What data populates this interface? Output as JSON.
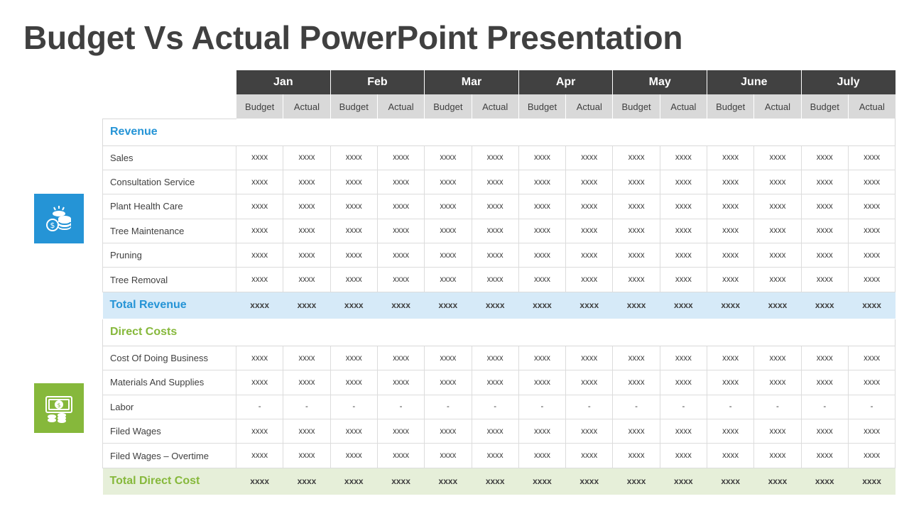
{
  "title": "Budget Vs Actual PowerPoint Presentation",
  "colors": {
    "revenue_accent": "#2594d6",
    "cost_accent": "#86b83b",
    "header_dark": "#414141",
    "subheader_gray": "#d9d9d9"
  },
  "icons": {
    "revenue": "coins-money-icon",
    "costs": "cash-bill-icon"
  },
  "months": [
    "Jan",
    "Feb",
    "Mar",
    "Apr",
    "May",
    "June",
    "July"
  ],
  "sub_labels": {
    "budget": "Budget",
    "actual": "Actual"
  },
  "revenue": {
    "heading": "Revenue",
    "rows": [
      {
        "label": "Sales",
        "values": [
          "xxxx",
          "xxxx",
          "xxxx",
          "xxxx",
          "xxxx",
          "xxxx",
          "xxxx",
          "xxxx",
          "xxxx",
          "xxxx",
          "xxxx",
          "xxxx",
          "xxxx",
          "xxxx"
        ]
      },
      {
        "label": "Consultation Service",
        "values": [
          "xxxx",
          "xxxx",
          "xxxx",
          "xxxx",
          "xxxx",
          "xxxx",
          "xxxx",
          "xxxx",
          "xxxx",
          "xxxx",
          "xxxx",
          "xxxx",
          "xxxx",
          "xxxx"
        ]
      },
      {
        "label": "Plant Health Care",
        "values": [
          "xxxx",
          "xxxx",
          "xxxx",
          "xxxx",
          "xxxx",
          "xxxx",
          "xxxx",
          "xxxx",
          "xxxx",
          "xxxx",
          "xxxx",
          "xxxx",
          "xxxx",
          "xxxx"
        ]
      },
      {
        "label": "Tree Maintenance",
        "values": [
          "xxxx",
          "xxxx",
          "xxxx",
          "xxxx",
          "xxxx",
          "xxxx",
          "xxxx",
          "xxxx",
          "xxxx",
          "xxxx",
          "xxxx",
          "xxxx",
          "xxxx",
          "xxxx"
        ]
      },
      {
        "label": "Pruning",
        "values": [
          "xxxx",
          "xxxx",
          "xxxx",
          "xxxx",
          "xxxx",
          "xxxx",
          "xxxx",
          "xxxx",
          "xxxx",
          "xxxx",
          "xxxx",
          "xxxx",
          "xxxx",
          "xxxx"
        ]
      },
      {
        "label": "Tree Removal",
        "values": [
          "xxxx",
          "xxxx",
          "xxxx",
          "xxxx",
          "xxxx",
          "xxxx",
          "xxxx",
          "xxxx",
          "xxxx",
          "xxxx",
          "xxxx",
          "xxxx",
          "xxxx",
          "xxxx"
        ]
      }
    ],
    "total": {
      "label": "Total Revenue",
      "values": [
        "xxxx",
        "xxxx",
        "xxxx",
        "xxxx",
        "xxxx",
        "xxxx",
        "xxxx",
        "xxxx",
        "xxxx",
        "xxxx",
        "xxxx",
        "xxxx",
        "xxxx",
        "xxxx"
      ]
    }
  },
  "direct_costs": {
    "heading": "Direct Costs",
    "rows": [
      {
        "label": "Cost Of Doing Business",
        "values": [
          "xxxx",
          "xxxx",
          "xxxx",
          "xxxx",
          "xxxx",
          "xxxx",
          "xxxx",
          "xxxx",
          "xxxx",
          "xxxx",
          "xxxx",
          "xxxx",
          "xxxx",
          "xxxx"
        ]
      },
      {
        "label": "Materials And Supplies",
        "values": [
          "xxxx",
          "xxxx",
          "xxxx",
          "xxxx",
          "xxxx",
          "xxxx",
          "xxxx",
          "xxxx",
          "xxxx",
          "xxxx",
          "xxxx",
          "xxxx",
          "xxxx",
          "xxxx"
        ]
      },
      {
        "label": "Labor",
        "values": [
          "-",
          "-",
          "-",
          "-",
          "-",
          "-",
          "-",
          "-",
          "-",
          "-",
          "-",
          "-",
          "-",
          "-"
        ]
      },
      {
        "label": "Filed Wages",
        "values": [
          "xxxx",
          "xxxx",
          "xxxx",
          "xxxx",
          "xxxx",
          "xxxx",
          "xxxx",
          "xxxx",
          "xxxx",
          "xxxx",
          "xxxx",
          "xxxx",
          "xxxx",
          "xxxx"
        ]
      },
      {
        "label": "Filed Wages – Overtime",
        "values": [
          "xxxx",
          "xxxx",
          "xxxx",
          "xxxx",
          "xxxx",
          "xxxx",
          "xxxx",
          "xxxx",
          "xxxx",
          "xxxx",
          "xxxx",
          "xxxx",
          "xxxx",
          "xxxx"
        ]
      }
    ],
    "total": {
      "label": "Total Direct Cost",
      "values": [
        "xxxx",
        "xxxx",
        "xxxx",
        "xxxx",
        "xxxx",
        "xxxx",
        "xxxx",
        "xxxx",
        "xxxx",
        "xxxx",
        "xxxx",
        "xxxx",
        "xxxx",
        "xxxx"
      ]
    }
  }
}
